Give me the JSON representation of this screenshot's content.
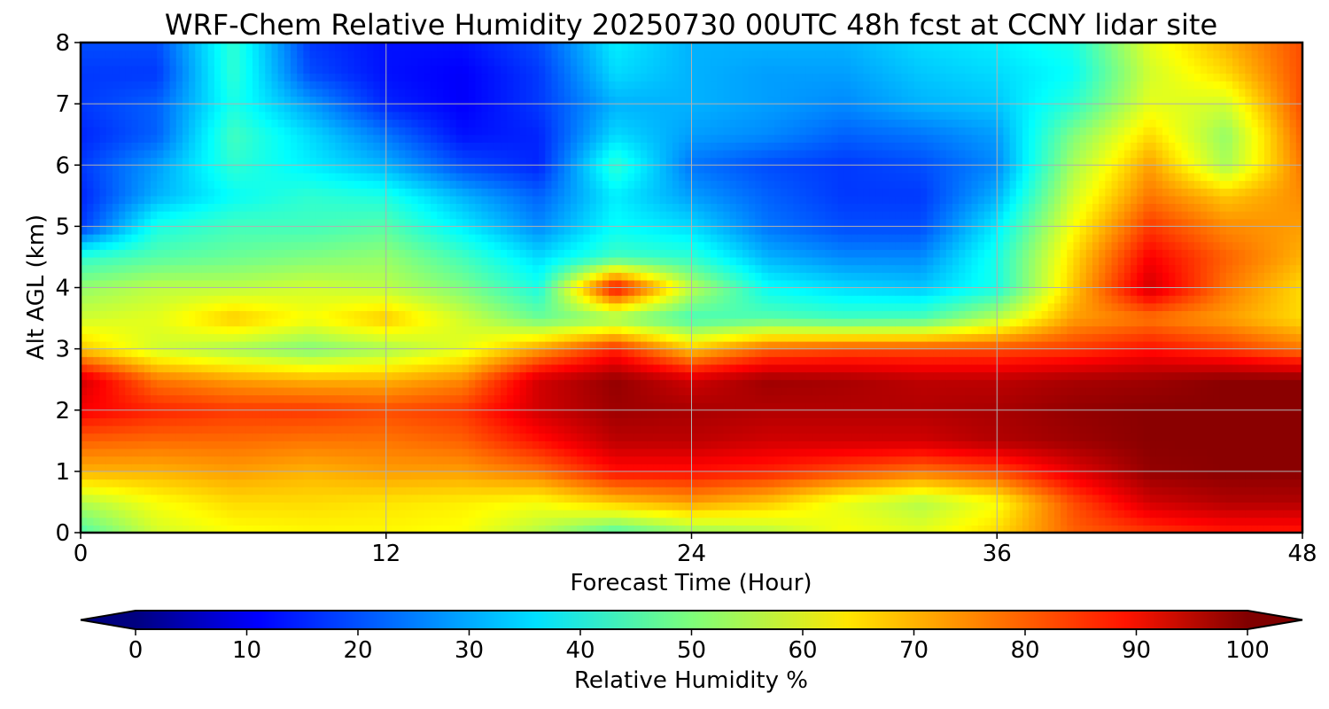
{
  "chart_data": {
    "type": "heatmap",
    "title": "WRF-Chem Relative Humidity 20250730 00UTC 48h fcst at CCNY lidar site",
    "xlabel": "Forecast Time (Hour)",
    "ylabel": "Alt AGL (km)",
    "xlim": [
      0,
      48
    ],
    "ylim": [
      0,
      8
    ],
    "xticks": [
      0,
      12,
      24,
      36,
      48
    ],
    "yticks": [
      0,
      1,
      2,
      3,
      4,
      5,
      6,
      7,
      8
    ],
    "grid": true,
    "colormap": "jet",
    "colorbar": {
      "label": "Relative Humidity %",
      "ticks": [
        0,
        10,
        20,
        30,
        40,
        50,
        60,
        70,
        80,
        90,
        100
      ],
      "range": [
        0,
        100
      ],
      "extend": "both",
      "orientation": "horizontal"
    },
    "x": [
      0,
      3,
      6,
      9,
      12,
      15,
      18,
      21,
      24,
      27,
      30,
      33,
      36,
      39,
      42,
      45,
      48
    ],
    "y": [
      0,
      0.5,
      1,
      1.5,
      2,
      2.5,
      3,
      3.5,
      4,
      4.5,
      5,
      5.5,
      6,
      6.5,
      7,
      7.5,
      8
    ],
    "z": [
      [
        45,
        58,
        62,
        63,
        63,
        62,
        55,
        45,
        52,
        55,
        62,
        60,
        66,
        78,
        82,
        85,
        85
      ],
      [
        55,
        62,
        66,
        66,
        65,
        64,
        62,
        68,
        72,
        68,
        60,
        55,
        62,
        80,
        92,
        95,
        95
      ],
      [
        70,
        70,
        72,
        70,
        72,
        72,
        76,
        86,
        86,
        84,
        80,
        76,
        80,
        90,
        98,
        99,
        99
      ],
      [
        78,
        77,
        77,
        76,
        76,
        78,
        86,
        94,
        94,
        92,
        92,
        92,
        95,
        97,
        99,
        99,
        99
      ],
      [
        88,
        84,
        82,
        82,
        80,
        82,
        92,
        97,
        96,
        95,
        95,
        95,
        96,
        98,
        99,
        99,
        99
      ],
      [
        92,
        76,
        72,
        70,
        70,
        74,
        92,
        98,
        92,
        97,
        96,
        94,
        94,
        96,
        97,
        99,
        99
      ],
      [
        68,
        58,
        54,
        50,
        54,
        60,
        72,
        84,
        68,
        78,
        80,
        80,
        80,
        82,
        86,
        82,
        76
      ],
      [
        58,
        60,
        68,
        62,
        68,
        58,
        48,
        52,
        44,
        46,
        44,
        45,
        56,
        72,
        76,
        72,
        66
      ],
      [
        52,
        56,
        56,
        58,
        56,
        50,
        40,
        88,
        56,
        38,
        34,
        32,
        40,
        68,
        92,
        76,
        66
      ],
      [
        42,
        46,
        48,
        50,
        52,
        44,
        34,
        44,
        42,
        30,
        26,
        26,
        40,
        66,
        88,
        78,
        70
      ],
      [
        18,
        40,
        44,
        44,
        46,
        36,
        26,
        38,
        34,
        24,
        20,
        20,
        36,
        62,
        82,
        74,
        72
      ],
      [
        16,
        30,
        38,
        42,
        40,
        30,
        22,
        36,
        28,
        22,
        18,
        18,
        30,
        58,
        76,
        68,
        74
      ],
      [
        18,
        28,
        42,
        36,
        30,
        20,
        16,
        42,
        24,
        20,
        18,
        20,
        26,
        54,
        72,
        54,
        76
      ],
      [
        16,
        22,
        44,
        34,
        24,
        14,
        16,
        34,
        28,
        26,
        22,
        24,
        28,
        50,
        66,
        52,
        78
      ],
      [
        18,
        22,
        40,
        28,
        16,
        12,
        18,
        30,
        30,
        28,
        26,
        30,
        32,
        42,
        60,
        58,
        80
      ],
      [
        18,
        18,
        42,
        20,
        14,
        12,
        18,
        34,
        30,
        28,
        28,
        32,
        34,
        38,
        58,
        66,
        80
      ],
      [
        20,
        20,
        42,
        18,
        14,
        14,
        20,
        36,
        30,
        30,
        30,
        34,
        36,
        40,
        60,
        70,
        80
      ]
    ]
  }
}
